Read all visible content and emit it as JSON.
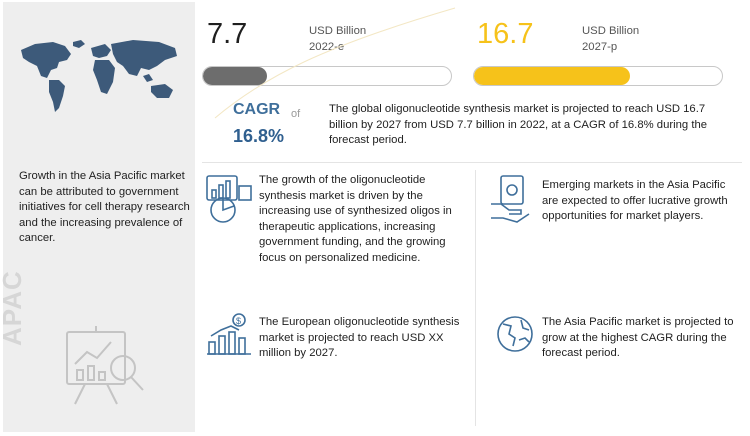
{
  "market_2022": {
    "value": "7.7",
    "unit": "USD Billion",
    "year": "2022-e",
    "bar_color": "#6d6d6d"
  },
  "market_2027": {
    "value": "16.7",
    "unit": "USD Billion",
    "year": "2027-p",
    "bar_color": "#f6c21a",
    "value_color": "#f6c21a"
  },
  "progress": {
    "value_2022_fraction": 0.26,
    "value_2027_fraction": 0.63
  },
  "cagr": {
    "label": "CAGR",
    "of": "of",
    "value": "16.8%"
  },
  "summary": "The global oligonucleotide synthesis market is projected to reach USD 16.7 billion by 2027 from USD 7.7 billion in 2022, at a CAGR of 16.8% during the forecast period.",
  "left_panel": {
    "text": "Growth in the Asia Pacific market can be attributed to government initiatives for cell therapy research and the increasing prevalence of cancer.",
    "region_label": "APAC"
  },
  "insights": [
    {
      "text": "The growth of the oligonucleotide synthesis market is driven by the increasing use of synthesized oligos in therapeutic applications, increasing government funding, and the growing focus on personalized medicine.",
      "icon": "growth-chart-icon"
    },
    {
      "text": "Emerging markets in the Asia Pacific are expected to offer lucrative growth opportunities for market players.",
      "icon": "money-hand-icon"
    },
    {
      "text": "The European oligonucleotide synthesis market is projected to reach USD XX million by 2027.",
      "icon": "bar-chart-dollar-icon"
    },
    {
      "text": "The Asia Pacific market is projected to grow at the highest CAGR during the forecast period.",
      "icon": "globe-icon"
    }
  ],
  "colors": {
    "accent_blue": "#3f6f9b",
    "accent_yellow": "#f6c21a",
    "panel_gray": "#eeeeee"
  }
}
